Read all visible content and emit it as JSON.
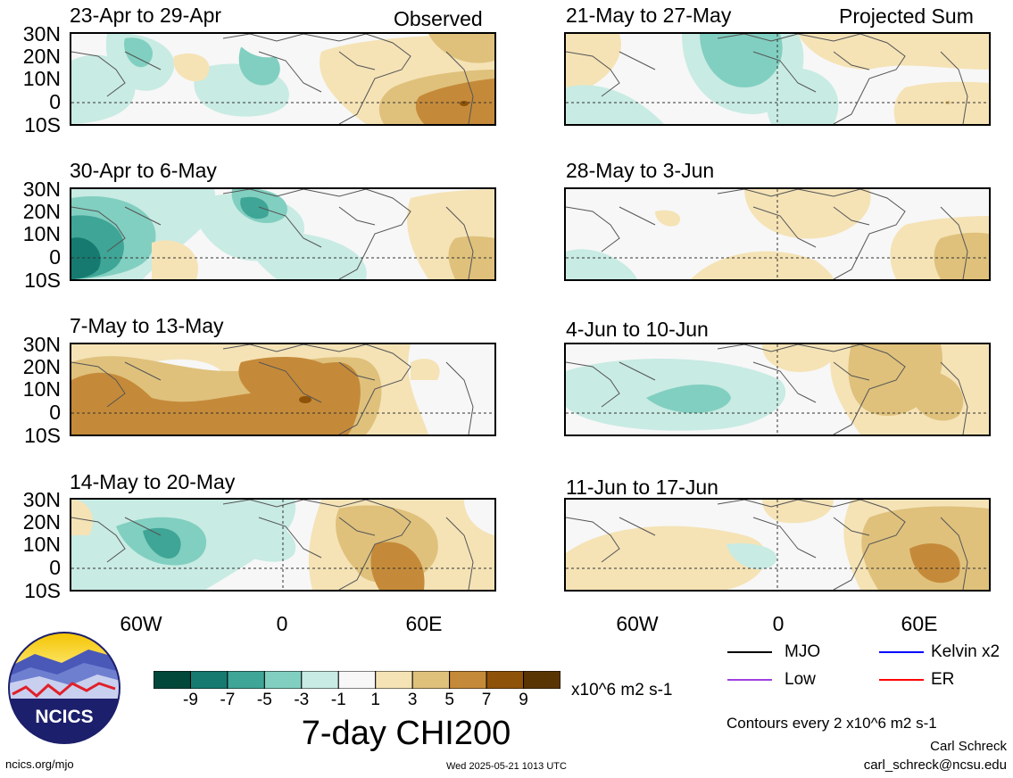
{
  "variable_title": "7-day CHI200",
  "units": "x10^6 m2 s-1",
  "contour_note": "Contours every 2 x10^6 m2 s-1",
  "author": "Carl Schreck",
  "email": "carl_schreck@ncsu.edu",
  "site": "ncics.org/mjo",
  "timestamp": "Wed 2025-05-21 1013 UTC",
  "logo_text": "NCICS",
  "columns": {
    "left_label": "Observed",
    "right_label": "Projected Sum"
  },
  "lat_labels": [
    "30N",
    "20N",
    "10N",
    "0",
    "10S"
  ],
  "lon_labels": [
    "60W",
    "0",
    "60E"
  ],
  "panels": {
    "left": [
      {
        "title": "23-Apr to 29-Apr"
      },
      {
        "title": "30-Apr to 6-May"
      },
      {
        "title": "7-May to 13-May"
      },
      {
        "title": "14-May to 20-May"
      }
    ],
    "right": [
      {
        "title": "21-May to 27-May"
      },
      {
        "title": "28-May to 3-Jun"
      },
      {
        "title": "4-Jun to 10-Jun"
      },
      {
        "title": "11-Jun to 17-Jun"
      }
    ]
  },
  "colorbar": {
    "ticks": [
      "-9",
      "-7",
      "-5",
      "-3",
      "-1",
      "1",
      "3",
      "5",
      "7",
      "9"
    ],
    "colors": [
      "#01483b",
      "#167a70",
      "#3fa596",
      "#81cfc0",
      "#c8ebe3",
      "#f7f7f7",
      "#f5e3b6",
      "#dfc17c",
      "#c58a39",
      "#8f5209",
      "#5a3504"
    ]
  },
  "line_legend": [
    {
      "label": "MJO",
      "color": "#000000"
    },
    {
      "label": "Kelvin x2",
      "color": "#0000ff"
    },
    {
      "label": "Low",
      "color": "#a040e0"
    },
    {
      "label": "ER",
      "color": "#ff0000"
    }
  ]
}
